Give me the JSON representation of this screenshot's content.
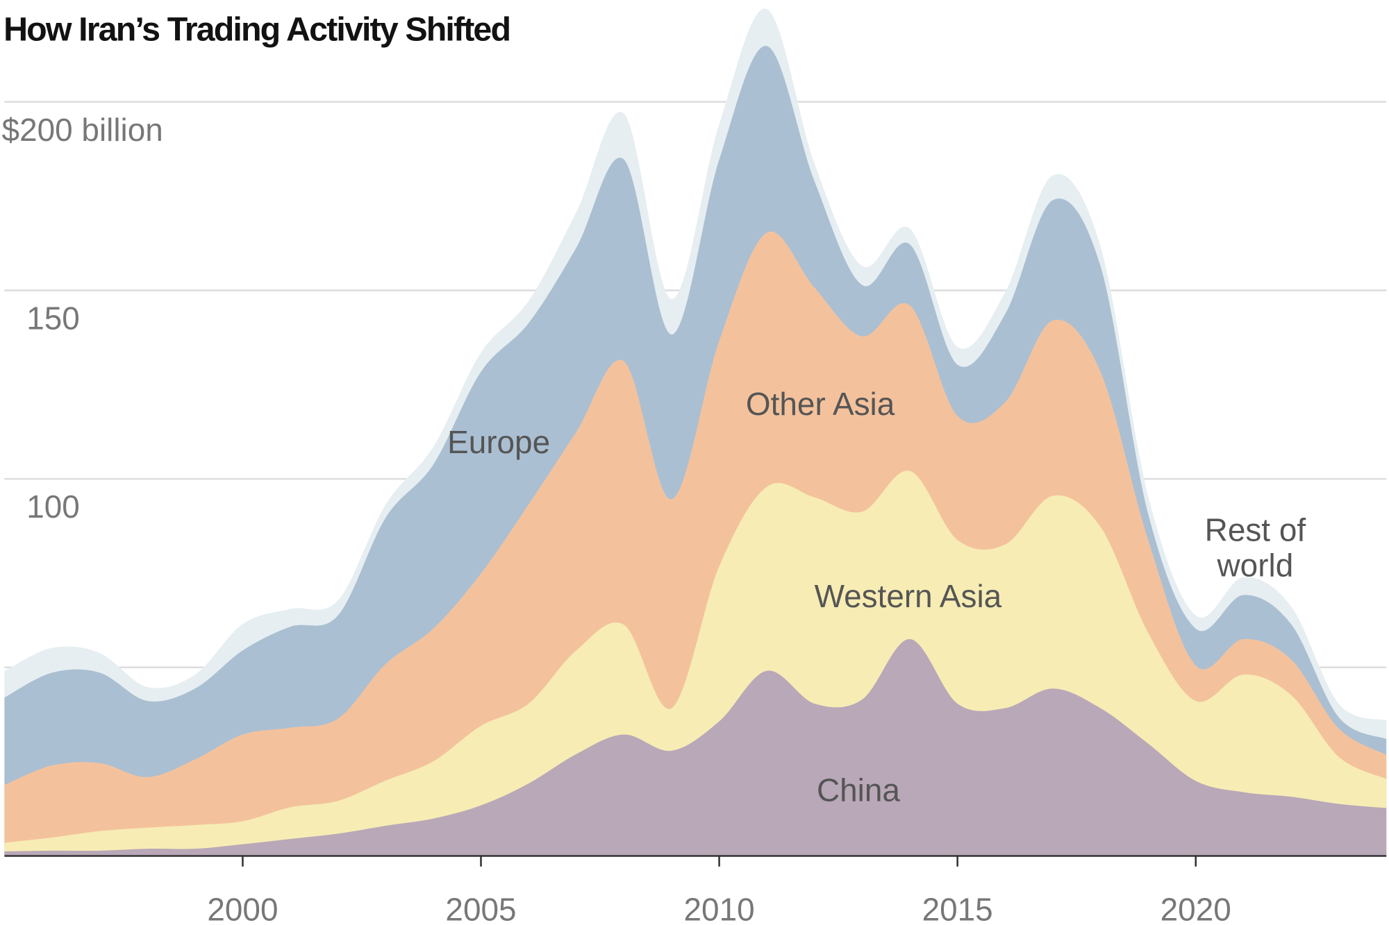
{
  "chart_data": {
    "type": "area",
    "stacked": true,
    "title": "How Iran’s Trading Activity Shifted",
    "xlabel": "",
    "ylabel": "",
    "ylim": [
      0,
      200
    ],
    "xlim": [
      1995,
      2024
    ],
    "grid": true,
    "y_ticks": [
      {
        "value": 50,
        "label": ""
      },
      {
        "value": 100,
        "label": "100"
      },
      {
        "value": 150,
        "label": "150"
      },
      {
        "value": 200,
        "label": "$200 billion"
      }
    ],
    "x_ticks": [
      {
        "value": 2000,
        "label": "2000"
      },
      {
        "value": 2005,
        "label": "2005"
      },
      {
        "value": 2010,
        "label": "2010"
      },
      {
        "value": 2015,
        "label": "2015"
      },
      {
        "value": 2020,
        "label": "2020"
      }
    ],
    "x": [
      1995,
      1996,
      1997,
      1998,
      1999,
      2000,
      2001,
      2002,
      2003,
      2004,
      2005,
      2006,
      2007,
      2008,
      2009,
      2010,
      2011,
      2012,
      2013,
      2014,
      2015,
      2016,
      2017,
      2018,
      2019,
      2020,
      2021,
      2022,
      2023,
      2024
    ],
    "series": [
      {
        "name": "China",
        "color": "#b9a8b8",
        "label_lines": [
          "China"
        ],
        "values": [
          1.2,
          1.4,
          1.4,
          1.9,
          1.9,
          3.1,
          4.5,
          5.9,
          8.0,
          9.9,
          13.4,
          19.2,
          27.0,
          32.2,
          27.9,
          35.7,
          49.1,
          40.4,
          41.5,
          57.5,
          40.4,
          39.2,
          44.4,
          39.2,
          29.8,
          19.9,
          16.9,
          15.7,
          13.8,
          12.7
        ]
      },
      {
        "name": "Western Asia",
        "color": "#f7ecb4",
        "label_lines": [
          "Western Asia"
        ],
        "values": [
          2.3,
          3.5,
          5.2,
          5.6,
          6.3,
          6.1,
          8.4,
          8.7,
          12.0,
          15.2,
          21.1,
          21.2,
          27.5,
          29.1,
          11.3,
          41.1,
          48.8,
          54.7,
          49.8,
          44.6,
          43.4,
          43.4,
          51.1,
          48.1,
          29.4,
          21.2,
          31.2,
          27.0,
          12.5,
          7.7
        ]
      },
      {
        "name": "Other Asia",
        "color": "#f3c29d",
        "label_lines": [
          "Other Asia"
        ],
        "values": [
          15.3,
          19.1,
          18.0,
          13.4,
          17.4,
          23.0,
          21.1,
          21.8,
          30.9,
          35.2,
          40.4,
          52.8,
          57.9,
          69.9,
          55.4,
          59.8,
          67.4,
          55.6,
          46.5,
          43.9,
          32.9,
          37.7,
          46.5,
          41.1,
          24.6,
          9.4,
          9.4,
          9.4,
          7.5,
          6.4
        ]
      },
      {
        "name": "Europe",
        "color": "#abbfd2",
        "label_lines": [
          "Europe"
        ],
        "values": [
          23.2,
          24.6,
          24.0,
          20.2,
          18.8,
          22.3,
          26.8,
          27.4,
          38.8,
          43.5,
          53.5,
          48.1,
          48.9,
          53.5,
          43.7,
          48.1,
          49.5,
          28.2,
          13.6,
          16.2,
          13.6,
          23.4,
          31.9,
          28.1,
          7.0,
          9.8,
          11.7,
          9.4,
          3.0,
          4.2
        ]
      },
      {
        "name": "Rest of world",
        "color": "#e6eef1",
        "label_lines": [
          "Rest of",
          "world"
        ],
        "values": [
          7.0,
          6.6,
          5.2,
          3.7,
          3.7,
          7.0,
          4.7,
          4.0,
          3.5,
          4.7,
          5.1,
          5.9,
          9.4,
          12.2,
          9.4,
          9.4,
          9.8,
          4.7,
          5.1,
          4.2,
          4.7,
          5.8,
          6.6,
          5.2,
          4.7,
          3.5,
          4.7,
          4.7,
          3.6,
          4.9
        ]
      }
    ]
  }
}
